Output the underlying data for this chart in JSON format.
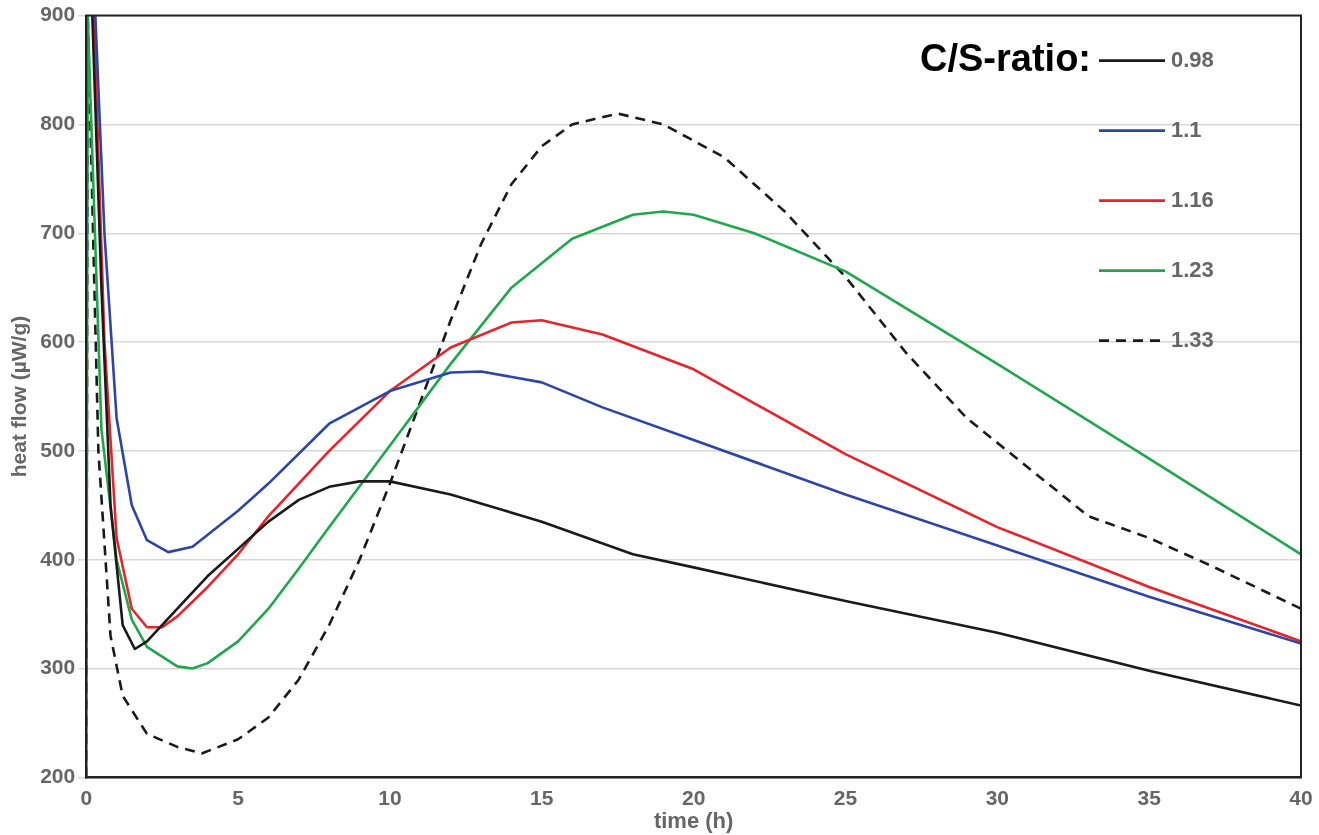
{
  "chart_data": {
    "type": "line",
    "xlabel": "time (h)",
    "ylabel": "heat flow (µW/g)",
    "legend_title": "C/S-ratio:",
    "legend": "top right",
    "grid": "y",
    "marker": "none",
    "xlim": [
      0,
      40
    ],
    "xticks": [
      0,
      5,
      10,
      15,
      20,
      25,
      30,
      35,
      40
    ],
    "ylim": [
      200,
      900
    ],
    "yticks": [
      200,
      300,
      400,
      500,
      600,
      700,
      800,
      900
    ],
    "series": [
      {
        "name": "0.98",
        "color": "#1a1a1a",
        "line_style": "solid",
        "x": [
          0.2,
          0.5,
          0.8,
          1.2,
          1.6,
          2,
          3,
          4,
          5,
          6,
          7,
          8,
          9,
          10,
          12,
          15,
          18,
          20,
          25,
          30,
          35,
          40
        ],
        "values": [
          900,
          650,
          450,
          340,
          318,
          325,
          355,
          385,
          410,
          435,
          455,
          467,
          472,
          472,
          460,
          435,
          405,
          393,
          362,
          333,
          298,
          266
        ]
      },
      {
        "name": "1.1",
        "color": "#2e45a8",
        "line_style": "solid",
        "x": [
          0.3,
          0.6,
          1,
          1.5,
          2,
          2.7,
          3.5,
          5,
          6,
          8,
          10,
          12,
          13,
          15,
          17,
          20,
          25,
          30,
          35,
          40
        ],
        "values": [
          900,
          700,
          530,
          450,
          418,
          407,
          412,
          445,
          470,
          525,
          555,
          572,
          573,
          563,
          540,
          510,
          460,
          413,
          366,
          323
        ]
      },
      {
        "name": "1.16",
        "color": "#e8232a",
        "line_style": "solid",
        "x": [
          0.25,
          0.6,
          1,
          1.5,
          2,
          2.5,
          3,
          4,
          5,
          6,
          8,
          10,
          12,
          14,
          15,
          17,
          20,
          25,
          30,
          35,
          40
        ],
        "values": [
          900,
          600,
          420,
          355,
          338,
          338,
          348,
          375,
          405,
          440,
          500,
          555,
          595,
          618,
          620,
          607,
          575,
          497,
          430,
          375,
          325
        ]
      },
      {
        "name": "1.23",
        "color": "#1fa84a",
        "line_style": "solid",
        "x": [
          0,
          0.05,
          0.5,
          1,
          1.5,
          2,
          3,
          3.5,
          4,
          5,
          6,
          7,
          8,
          10,
          12,
          14,
          16,
          18,
          19,
          20,
          22,
          25,
          30,
          35,
          40
        ],
        "values": [
          200,
          900,
          520,
          400,
          345,
          320,
          302,
          300,
          305,
          325,
          355,
          392,
          430,
          505,
          580,
          650,
          695,
          717,
          720,
          717,
          700,
          665,
          580,
          493,
          405
        ]
      },
      {
        "name": "1.33",
        "color": "#1a1a1a",
        "line_style": "dashed",
        "x": [
          0,
          0.05,
          0.4,
          0.8,
          1.2,
          2,
          3,
          3.8,
          5,
          6,
          7,
          8,
          9,
          10,
          11,
          12,
          13,
          14,
          15,
          16,
          17.5,
          19,
          21,
          23,
          25,
          27,
          29,
          31,
          33,
          35,
          37,
          40
        ],
        "values": [
          200,
          900,
          500,
          330,
          275,
          240,
          228,
          222,
          235,
          255,
          290,
          340,
          400,
          470,
          545,
          620,
          690,
          745,
          780,
          800,
          810,
          800,
          770,
          720,
          660,
          590,
          530,
          485,
          440,
          420,
          395,
          355
        ]
      }
    ]
  }
}
